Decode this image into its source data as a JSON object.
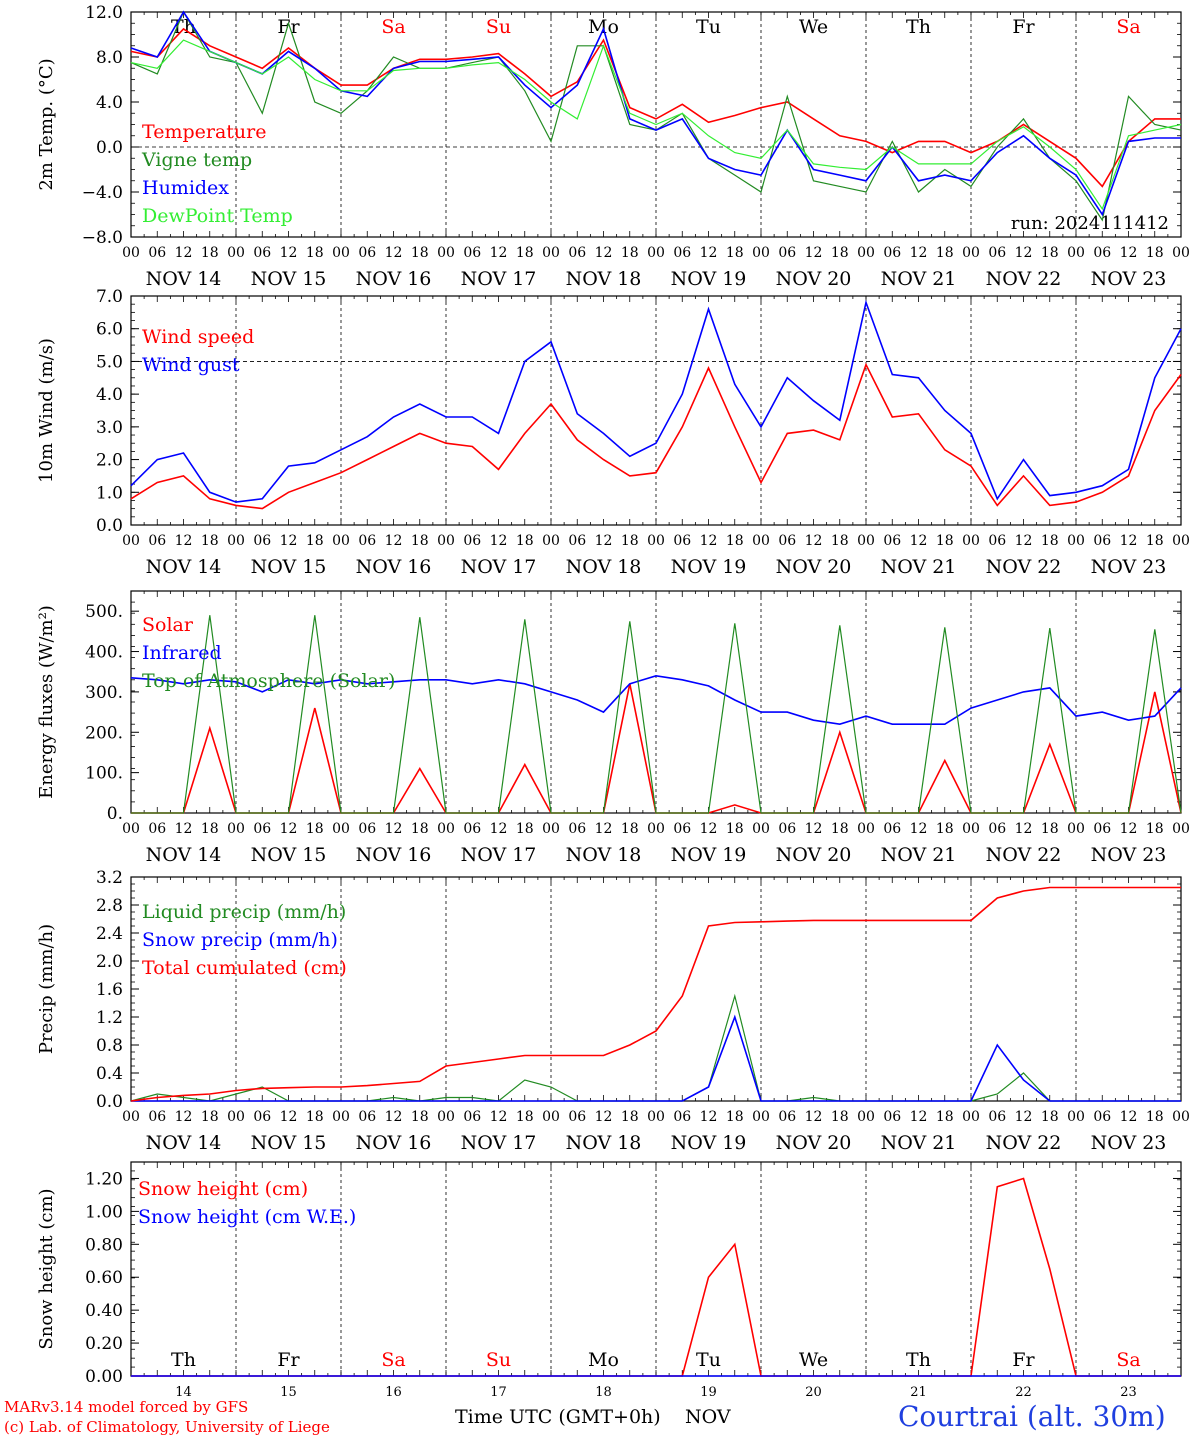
{
  "colors": {
    "red": "#ff0000",
    "green": "#228B22",
    "blue": "#0000ff",
    "lightgreen": "#33ee33",
    "black": "#000000"
  },
  "footer": {
    "credit_line1": "MARv3.14 model forced by GFS",
    "credit_line2": "(c) Lab. of Climatology, University of Liege",
    "xlabel": "Time UTC (GMT+0h)",
    "month": "NOV",
    "station": "Courtrai (alt. 30m)"
  },
  "chart_data": [
    {
      "type": "line",
      "ylabel": "2m Temp. (°C)",
      "ylim": [
        -8,
        12
      ],
      "yticks": [
        "12.0",
        "8.0",
        "4.0",
        "0.0",
        "−4.0",
        "−8.0"
      ],
      "day_letters": [
        "Th",
        "Fr",
        "Sa",
        "Su",
        "Mo",
        "Tu",
        "We",
        "Th",
        "Fr",
        "Sa"
      ],
      "day_labels": [
        "NOV 14",
        "NOV 15",
        "NOV 16",
        "NOV 17",
        "NOV 18",
        "NOV 19",
        "NOV 20",
        "NOV 21",
        "NOV 22",
        "NOV 23"
      ],
      "hour_ticks": [
        "00",
        "06",
        "12",
        "18"
      ],
      "run_label": "run: 2024111412",
      "x_hours": [
        0,
        6,
        12,
        18,
        24,
        30,
        36,
        42,
        48,
        54,
        60,
        66,
        72,
        78,
        84,
        90,
        96,
        102,
        108,
        114,
        120,
        126,
        132,
        138,
        144,
        150,
        156,
        162,
        168,
        174,
        180,
        186,
        192,
        198,
        204,
        210,
        216,
        222,
        228,
        234,
        240
      ],
      "series": [
        {
          "name": "Temperature",
          "color": "red",
          "values": [
            8.5,
            8.0,
            10.5,
            9.0,
            8.0,
            7.0,
            8.8,
            7.0,
            5.5,
            5.5,
            7.0,
            7.8,
            7.8,
            8.0,
            8.3,
            6.5,
            4.5,
            5.8,
            9.5,
            3.5,
            2.5,
            3.8,
            2.2,
            2.8,
            3.5,
            4.0,
            2.5,
            1.0,
            0.5,
            -0.5,
            0.5,
            0.5,
            -0.5,
            0.5,
            2.0,
            0.5,
            -1.0,
            -3.5,
            0.5,
            2.5,
            2.5
          ]
        },
        {
          "name": "Vigne temp",
          "color": "green",
          "values": [
            7.5,
            6.5,
            12.0,
            8.0,
            7.5,
            3.0,
            11.0,
            4.0,
            3.0,
            5.0,
            8.0,
            7.0,
            7.0,
            7.5,
            8.0,
            5.0,
            0.5,
            9.0,
            9.0,
            2.0,
            1.5,
            3.0,
            -1.0,
            -2.5,
            -4.0,
            4.5,
            -3.0,
            -3.5,
            -4.0,
            0.5,
            -4.0,
            -2.0,
            -3.5,
            0.0,
            2.5,
            -1.0,
            -3.0,
            -6.5,
            4.5,
            2.0,
            1.5
          ]
        },
        {
          "name": "Humidex",
          "color": "blue",
          "values": [
            8.8,
            8.0,
            12.0,
            8.5,
            7.5,
            6.5,
            8.5,
            7.0,
            5.0,
            4.5,
            7.0,
            7.6,
            7.6,
            7.8,
            8.0,
            5.5,
            3.5,
            5.5,
            10.5,
            2.5,
            1.5,
            2.5,
            -1.0,
            -2.0,
            -2.5,
            1.5,
            -2.0,
            -2.5,
            -3.0,
            0.0,
            -3.0,
            -2.5,
            -3.0,
            -0.5,
            1.0,
            -1.0,
            -2.5,
            -6.0,
            0.5,
            0.8,
            0.8
          ]
        },
        {
          "name": "DewPoint Temp",
          "color": "lightgreen",
          "values": [
            7.5,
            7.0,
            9.5,
            8.5,
            7.5,
            6.5,
            8.0,
            6.0,
            5.0,
            5.0,
            6.8,
            7.0,
            7.0,
            7.3,
            7.5,
            6.0,
            4.0,
            2.5,
            9.0,
            3.0,
            2.0,
            3.0,
            1.0,
            -0.5,
            -1.0,
            1.5,
            -1.5,
            -1.8,
            -2.0,
            0.0,
            -1.5,
            -1.5,
            -1.5,
            0.5,
            1.8,
            0.0,
            -2.0,
            -5.5,
            1.0,
            1.5,
            2.0
          ]
        }
      ]
    },
    {
      "type": "line",
      "ylabel": "10m Wind (m/s)",
      "ylim": [
        0,
        7
      ],
      "yticks": [
        "7.0",
        "6.0",
        "5.0",
        "4.0",
        "3.0",
        "2.0",
        "1.0",
        "0.0"
      ],
      "day_labels": [
        "NOV 14",
        "NOV 15",
        "NOV 16",
        "NOV 17",
        "NOV 18",
        "NOV 19",
        "NOV 20",
        "NOV 21",
        "NOV 22",
        "NOV 23"
      ],
      "hour_ticks": [
        "00",
        "06",
        "12",
        "18"
      ],
      "x_hours": [
        0,
        6,
        12,
        18,
        24,
        30,
        36,
        42,
        48,
        54,
        60,
        66,
        72,
        78,
        84,
        90,
        96,
        102,
        108,
        114,
        120,
        126,
        132,
        138,
        144,
        150,
        156,
        162,
        168,
        174,
        180,
        186,
        192,
        198,
        204,
        210,
        216,
        222,
        228,
        234,
        240
      ],
      "series": [
        {
          "name": "Wind speed",
          "color": "red",
          "values": [
            0.8,
            1.3,
            1.5,
            0.8,
            0.6,
            0.5,
            1.0,
            1.3,
            1.6,
            2.0,
            2.4,
            2.8,
            2.5,
            2.4,
            1.7,
            2.8,
            3.7,
            2.6,
            2.0,
            1.5,
            1.6,
            3.0,
            4.8,
            3.0,
            1.3,
            2.8,
            2.9,
            2.6,
            4.9,
            3.3,
            3.4,
            2.3,
            1.8,
            0.6,
            1.5,
            0.6,
            0.7,
            1.0,
            1.5,
            3.5,
            4.6
          ]
        },
        {
          "name": "Wind gust",
          "color": "blue",
          "values": [
            1.2,
            2.0,
            2.2,
            1.0,
            0.7,
            0.8,
            1.8,
            1.9,
            2.3,
            2.7,
            3.3,
            3.7,
            3.3,
            3.3,
            2.8,
            5.0,
            5.6,
            3.4,
            2.8,
            2.1,
            2.5,
            4.0,
            6.6,
            4.3,
            3.0,
            4.5,
            3.8,
            3.2,
            6.8,
            4.6,
            4.5,
            3.5,
            2.8,
            0.8,
            2.0,
            0.9,
            1.0,
            1.2,
            1.7,
            4.5,
            6.0
          ]
        }
      ]
    },
    {
      "type": "line",
      "ylabel": "Energy fluxes (W/m²)",
      "ylim": [
        0,
        550
      ],
      "yticks": [
        "500.",
        "400.",
        "300.",
        "200.",
        "100.",
        "0."
      ],
      "day_labels": [
        "NOV 14",
        "NOV 15",
        "NOV 16",
        "NOV 17",
        "NOV 18",
        "NOV 19",
        "NOV 20",
        "NOV 21",
        "NOV 22",
        "NOV 23"
      ],
      "hour_ticks": [
        "00",
        "06",
        "12",
        "18"
      ],
      "x_hours": [
        0,
        6,
        12,
        18,
        24,
        30,
        36,
        42,
        48,
        54,
        60,
        66,
        72,
        78,
        84,
        90,
        96,
        102,
        108,
        114,
        120,
        126,
        132,
        138,
        144,
        150,
        156,
        162,
        168,
        174,
        180,
        186,
        192,
        198,
        204,
        210,
        216,
        222,
        228,
        234,
        240
      ],
      "series": [
        {
          "name": "Solar",
          "color": "red",
          "values": [
            0,
            0,
            0,
            210,
            0,
            0,
            0,
            260,
            0,
            0,
            0,
            110,
            0,
            0,
            0,
            120,
            0,
            0,
            0,
            320,
            0,
            0,
            0,
            20,
            0,
            0,
            0,
            200,
            0,
            0,
            0,
            130,
            0,
            0,
            0,
            170,
            0,
            0,
            0,
            300,
            0
          ]
        },
        {
          "name": "Infrared",
          "color": "blue",
          "values": [
            335,
            330,
            320,
            330,
            325,
            300,
            330,
            320,
            330,
            320,
            325,
            330,
            330,
            320,
            330,
            320,
            300,
            280,
            250,
            320,
            340,
            330,
            315,
            280,
            250,
            250,
            230,
            220,
            240,
            220,
            220,
            220,
            260,
            280,
            300,
            310,
            240,
            250,
            230,
            240,
            310
          ]
        },
        {
          "name": "Top of Atmosphere (Solar)",
          "color": "green",
          "values": [
            0,
            0,
            0,
            490,
            0,
            0,
            0,
            490,
            0,
            0,
            0,
            485,
            0,
            0,
            0,
            480,
            0,
            0,
            0,
            475,
            0,
            0,
            0,
            470,
            0,
            0,
            0,
            465,
            0,
            0,
            0,
            460,
            0,
            0,
            0,
            458,
            0,
            0,
            0,
            455,
            0
          ]
        }
      ]
    },
    {
      "type": "line",
      "ylabel": "Precip (mm/h)",
      "ylim": [
        0,
        3.2
      ],
      "yticks": [
        "3.2",
        "2.8",
        "2.4",
        "2.0",
        "1.6",
        "1.2",
        "0.8",
        "0.4",
        "0.0"
      ],
      "day_labels": [
        "NOV 14",
        "NOV 15",
        "NOV 16",
        "NOV 17",
        "NOV 18",
        "NOV 19",
        "NOV 20",
        "NOV 21",
        "NOV 22",
        "NOV 23"
      ],
      "hour_ticks": [
        "00",
        "06",
        "12",
        "18"
      ],
      "x_hours": [
        0,
        6,
        12,
        18,
        24,
        30,
        36,
        42,
        48,
        54,
        60,
        66,
        72,
        78,
        84,
        90,
        96,
        102,
        108,
        114,
        120,
        126,
        132,
        138,
        144,
        150,
        156,
        162,
        168,
        174,
        180,
        186,
        192,
        198,
        204,
        210,
        216,
        222,
        228,
        234,
        240
      ],
      "series": [
        {
          "name": "Liquid precip (mm/h)",
          "color": "green",
          "values": [
            0,
            0.1,
            0.05,
            0,
            0.1,
            0.2,
            0,
            0,
            0,
            0,
            0.05,
            0,
            0.05,
            0.05,
            0,
            0.3,
            0.2,
            0,
            0,
            0,
            0,
            0,
            0.2,
            1.5,
            0,
            0,
            0.05,
            0,
            0,
            0,
            0,
            0,
            0,
            0.1,
            0.4,
            0,
            0,
            0,
            0,
            0,
            0
          ]
        },
        {
          "name": "Snow precip (mm/h)",
          "color": "blue",
          "values": [
            0,
            0,
            0,
            0,
            0,
            0,
            0,
            0,
            0,
            0,
            0,
            0,
            0,
            0,
            0,
            0,
            0,
            0,
            0,
            0,
            0,
            0,
            0.2,
            1.2,
            0,
            0,
            0,
            0,
            0,
            0,
            0,
            0,
            0,
            0.8,
            0.3,
            0,
            0,
            0,
            0,
            0,
            0
          ]
        },
        {
          "name": "Total cumulated (cm)",
          "color": "red",
          "values": [
            0,
            0.05,
            0.08,
            0.1,
            0.15,
            0.18,
            0.19,
            0.2,
            0.2,
            0.22,
            0.25,
            0.28,
            0.5,
            0.55,
            0.6,
            0.65,
            0.65,
            0.65,
            0.65,
            0.8,
            1.0,
            1.5,
            2.5,
            2.55,
            2.56,
            2.57,
            2.58,
            2.58,
            2.58,
            2.58,
            2.58,
            2.58,
            2.58,
            2.9,
            3.0,
            3.05,
            3.05,
            3.05,
            3.05,
            3.05,
            3.05
          ]
        }
      ]
    },
    {
      "type": "line",
      "ylabel": "Snow height (cm)",
      "ylim": [
        0,
        1.3
      ],
      "yticks": [
        "1.20",
        "1.00",
        "0.80",
        "0.60",
        "0.40",
        "0.20",
        "0.00"
      ],
      "day_letters": [
        "Th",
        "Fr",
        "Sa",
        "Su",
        "Mo",
        "Tu",
        "We",
        "Th",
        "Fr",
        "Sa"
      ],
      "day_numbers": [
        "14",
        "15",
        "16",
        "17",
        "18",
        "19",
        "20",
        "21",
        "22",
        "23"
      ],
      "x_hours": [
        0,
        6,
        12,
        18,
        24,
        30,
        36,
        42,
        48,
        54,
        60,
        66,
        72,
        78,
        84,
        90,
        96,
        102,
        108,
        114,
        120,
        126,
        132,
        138,
        144,
        150,
        156,
        162,
        168,
        174,
        180,
        186,
        192,
        198,
        204,
        210,
        216,
        222,
        228,
        234,
        240
      ],
      "series": [
        {
          "name": "Snow height (cm)",
          "color": "red",
          "values": [
            0,
            0,
            0,
            0,
            0,
            0,
            0,
            0,
            0,
            0,
            0,
            0,
            0,
            0,
            0,
            0,
            0,
            0,
            0,
            0,
            0,
            0,
            0.6,
            0.8,
            0,
            0,
            0,
            0,
            0,
            0,
            0,
            0,
            0,
            1.15,
            1.2,
            0.65,
            0,
            0,
            0,
            0,
            0
          ]
        },
        {
          "name": "Snow height (cm W.E.)",
          "color": "blue",
          "values": [
            0,
            0,
            0,
            0,
            0,
            0,
            0,
            0,
            0,
            0,
            0,
            0,
            0,
            0,
            0,
            0,
            0,
            0,
            0,
            0,
            0,
            0,
            0,
            0,
            0,
            0,
            0,
            0,
            0,
            0,
            0,
            0,
            0,
            0,
            0,
            0,
            0,
            0,
            0,
            0,
            0
          ]
        }
      ]
    }
  ]
}
